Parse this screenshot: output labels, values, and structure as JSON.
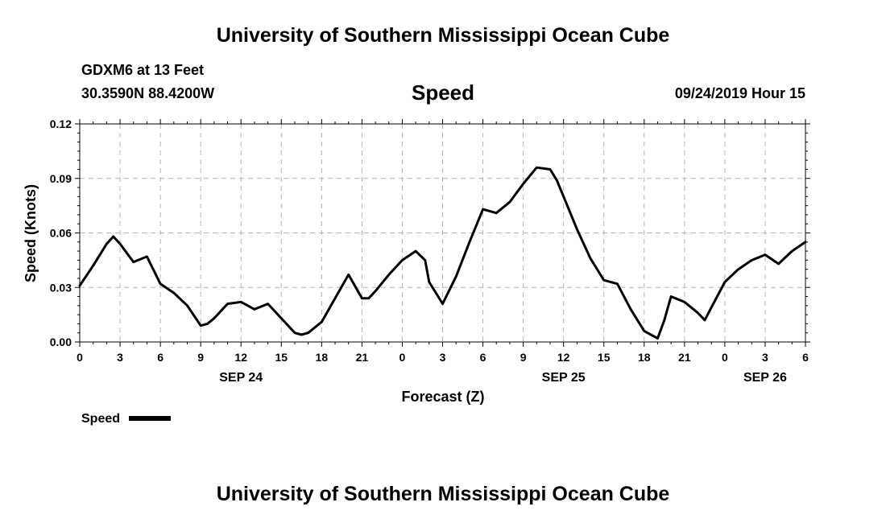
{
  "header": {
    "title": "University of Southern Mississippi Ocean Cube",
    "station": "GDXM6 at 13 Feet",
    "coordinates": "30.3590N 88.4200W",
    "datetime": "09/24/2019 Hour 15"
  },
  "footer": {
    "title": "University of Southern Mississippi Ocean Cube"
  },
  "chart_data": {
    "type": "line",
    "title": "Speed",
    "xlabel": "Forecast (Z)",
    "ylabel": "Speed (Knots)",
    "ylim": [
      0,
      0.12
    ],
    "yticks": [
      "0.00",
      "0.03",
      "0.06",
      "0.09",
      "0.12"
    ],
    "xlim": [
      0,
      54
    ],
    "xticks": [
      "0",
      "3",
      "6",
      "9",
      "12",
      "15",
      "18",
      "21",
      "0",
      "3",
      "6",
      "9",
      "12",
      "15",
      "18",
      "21",
      "0",
      "3",
      "6"
    ],
    "date_labels": [
      {
        "label": "SEP 24",
        "hour": 12
      },
      {
        "label": "SEP 25",
        "hour": 36
      },
      {
        "label": "SEP 26",
        "hour": 51
      }
    ],
    "grid": true,
    "legend": {
      "label": "Speed",
      "position": "bottom-left"
    },
    "series": [
      {
        "name": "Speed",
        "color": "#000000",
        "x": [
          0,
          1,
          2,
          2.5,
          3,
          4,
          5,
          6,
          7,
          8,
          9,
          9.5,
          10,
          11,
          12,
          12.5,
          13,
          14,
          15,
          16,
          16.5,
          17,
          18,
          19,
          20,
          21,
          21.5,
          22,
          23,
          24,
          25,
          25.7,
          26,
          26.5,
          27,
          28,
          29,
          30,
          31,
          32,
          33,
          34,
          35,
          35.5,
          36,
          37,
          38,
          39,
          40,
          41,
          42,
          43,
          43.5,
          44,
          45,
          46,
          46.5,
          47,
          48,
          49,
          50,
          51,
          52,
          53,
          54
        ],
        "y": [
          0.031,
          0.042,
          0.054,
          0.058,
          0.054,
          0.044,
          0.047,
          0.032,
          0.027,
          0.02,
          0.009,
          0.01,
          0.013,
          0.021,
          0.022,
          0.02,
          0.018,
          0.021,
          0.013,
          0.005,
          0.004,
          0.005,
          0.011,
          0.024,
          0.037,
          0.024,
          0.024,
          0.028,
          0.037,
          0.045,
          0.05,
          0.045,
          0.033,
          0.027,
          0.021,
          0.036,
          0.055,
          0.073,
          0.071,
          0.077,
          0.087,
          0.096,
          0.095,
          0.089,
          0.08,
          0.062,
          0.046,
          0.034,
          0.032,
          0.018,
          0.006,
          0.002,
          0.012,
          0.025,
          0.022,
          0.016,
          0.012,
          0.019,
          0.033,
          0.04,
          0.045,
          0.048,
          0.043,
          0.05,
          0.055
        ]
      }
    ]
  }
}
